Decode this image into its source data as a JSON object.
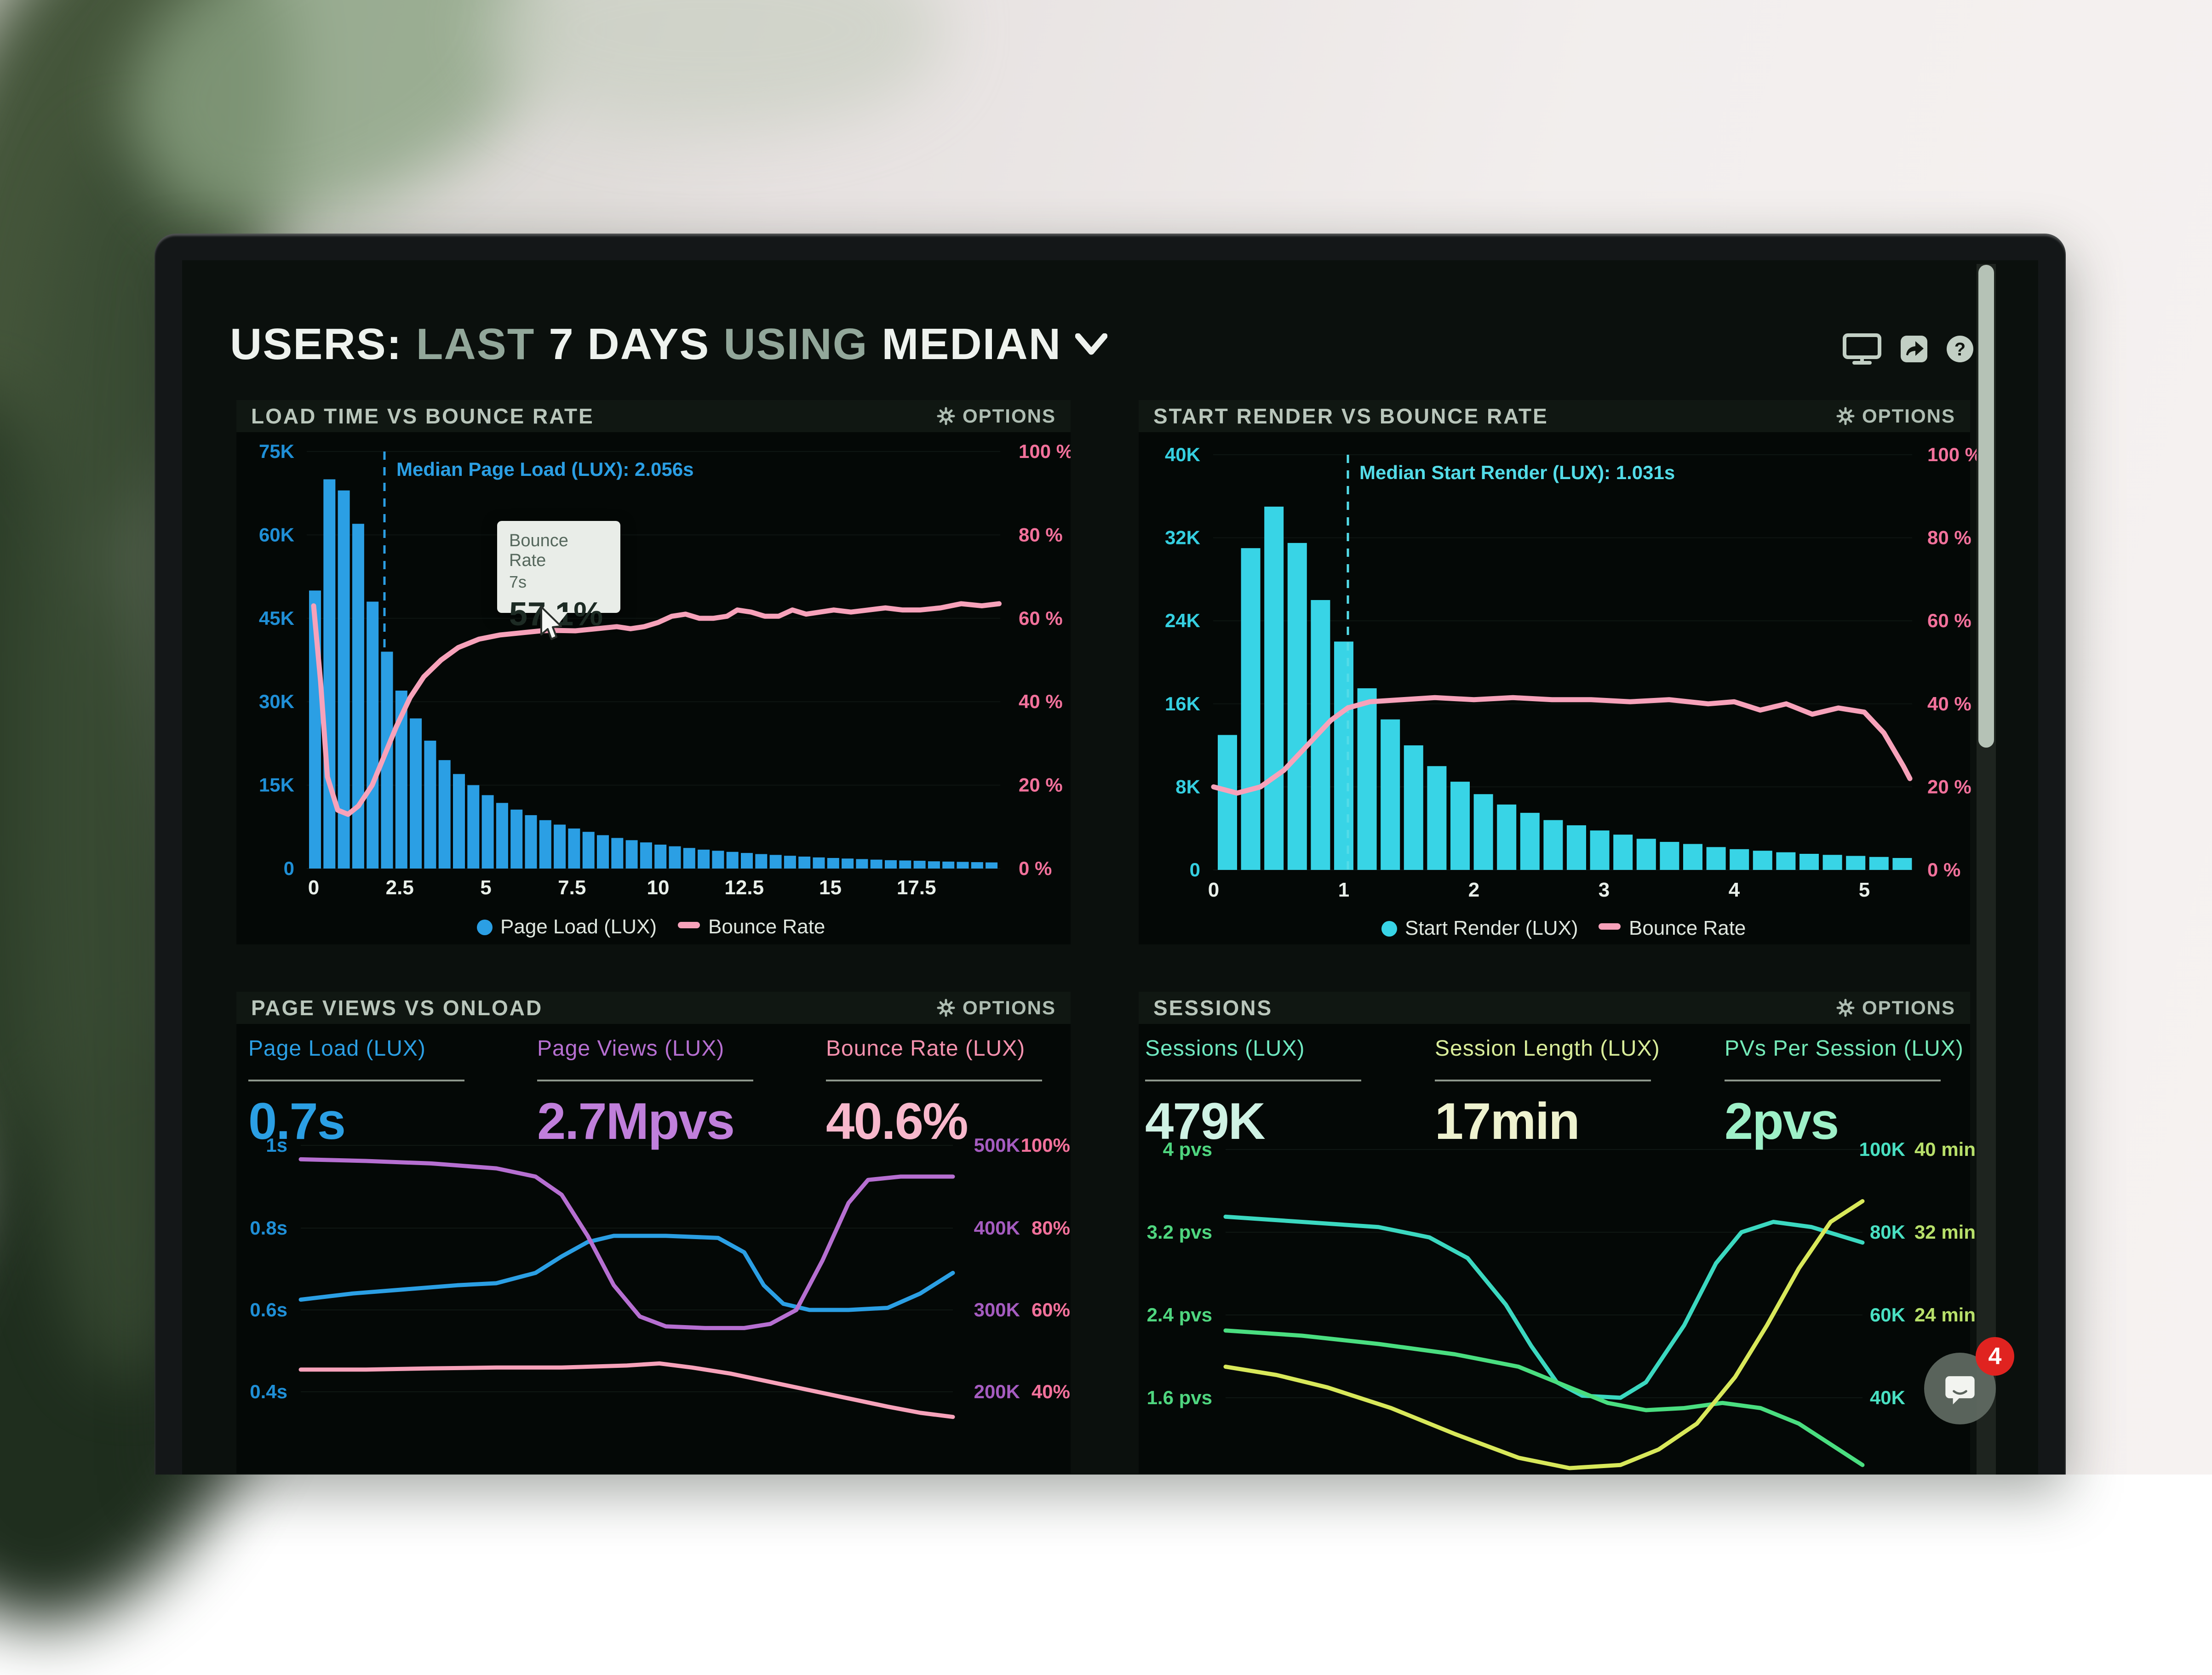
{
  "header": {
    "title_segments": [
      {
        "text": "USERS:",
        "style": "bright"
      },
      {
        "text": "LAST",
        "style": "muted"
      },
      {
        "text": "7 DAYS",
        "style": "bright"
      },
      {
        "text": "USING",
        "style": "muted"
      },
      {
        "text": "MEDIAN",
        "style": "bright"
      }
    ],
    "icons": [
      "display-icon",
      "share-icon",
      "help-circle-icon"
    ]
  },
  "colors": {
    "blue": "#2b9fe4",
    "blue_label": "#1f8fd6",
    "cyan": "#38d4e6",
    "cyan_label": "#35cfe0",
    "pink": "#f7a2ba",
    "pink_label": "#f2719b",
    "purple": "#b66fd1",
    "purple_label": "#a55cc0",
    "teal": "#3bd8c0",
    "green": "#4ade80",
    "yellow": "#d8e85a",
    "mint_label": "#6fe8c0",
    "lime_label": "#b8e06a",
    "white": "#eef2ee",
    "muted": "#92a79a",
    "header_text": "#b9c6bb"
  },
  "panels": [
    {
      "title": "LOAD TIME VS BOUNCE RATE",
      "options": "OPTIONS"
    },
    {
      "title": "START RENDER VS BOUNCE RATE",
      "options": "OPTIONS"
    },
    {
      "title": "PAGE VIEWS VS ONLOAD",
      "options": "OPTIONS"
    },
    {
      "title": "SESSIONS",
      "options": "OPTIONS"
    }
  ],
  "tooltip": {
    "series": "Bounce Rate",
    "x_value": "7s",
    "value": "57.1%"
  },
  "chat_widget": {
    "badge_count": "4",
    "icon": "chat-bubble-icon"
  },
  "chart_data": [
    {
      "type": "bar",
      "title": "Load Time vs Bounce Rate",
      "annotation": "Median Page Load (LUX): 2.056s",
      "median_seconds": 2.056,
      "x_ticks": [
        "0",
        "2.5",
        "5",
        "7.5",
        "10",
        "12.5",
        "15",
        "17.5"
      ],
      "x_tick_values": [
        0,
        2.5,
        5,
        7.5,
        10,
        12.5,
        15,
        17.5
      ],
      "x_unit": "seconds",
      "y_left_labels": [
        "75K",
        "60K",
        "45K",
        "30K",
        "15K",
        "0"
      ],
      "y_left_max_k": 75,
      "y_right_labels": [
        "100 %",
        "80 %",
        "60 %",
        "40 %",
        "20 %",
        "0 %"
      ],
      "bar_bin_seconds": 0.42,
      "bars_k": [
        50,
        70,
        68,
        62,
        48,
        39,
        32,
        27,
        23,
        19.5,
        17,
        15,
        13.2,
        11.8,
        10.6,
        9.6,
        8.7,
        7.9,
        7.2,
        6.6,
        6.0,
        5.5,
        5.1,
        4.7,
        4.3,
        4.0,
        3.7,
        3.4,
        3.2,
        3.0,
        2.8,
        2.6,
        2.45,
        2.3,
        2.15,
        2.0,
        1.9,
        1.8,
        1.7,
        1.6,
        1.5,
        1.45,
        1.4,
        1.3,
        1.25,
        1.2,
        1.15,
        1.1
      ],
      "line_points": [
        [
          0,
          63
        ],
        [
          0.2,
          45
        ],
        [
          0.4,
          22
        ],
        [
          0.7,
          14
        ],
        [
          1.0,
          13
        ],
        [
          1.3,
          15
        ],
        [
          1.7,
          20
        ],
        [
          2.0,
          26
        ],
        [
          2.4,
          34
        ],
        [
          2.8,
          41
        ],
        [
          3.2,
          46
        ],
        [
          3.7,
          50
        ],
        [
          4.2,
          53
        ],
        [
          4.8,
          55
        ],
        [
          5.4,
          56
        ],
        [
          6.0,
          56.5
        ],
        [
          6.6,
          57
        ],
        [
          7.0,
          57.1
        ],
        [
          7.6,
          57
        ],
        [
          8.2,
          57.5
        ],
        [
          8.8,
          58
        ],
        [
          9.2,
          57.5
        ],
        [
          9.6,
          58
        ],
        [
          10.0,
          59
        ],
        [
          10.4,
          60.5
        ],
        [
          10.8,
          61
        ],
        [
          11.2,
          60
        ],
        [
          11.6,
          60
        ],
        [
          12.0,
          60.5
        ],
        [
          12.3,
          62
        ],
        [
          12.7,
          61.5
        ],
        [
          13.1,
          60.5
        ],
        [
          13.5,
          60.5
        ],
        [
          13.9,
          62
        ],
        [
          14.3,
          61
        ],
        [
          14.7,
          61.5
        ],
        [
          15.1,
          62
        ],
        [
          15.6,
          61.5
        ],
        [
          16.1,
          62
        ],
        [
          16.6,
          62.5
        ],
        [
          17.1,
          62
        ],
        [
          17.6,
          62
        ],
        [
          18.2,
          62.5
        ],
        [
          18.8,
          63.5
        ],
        [
          19.4,
          63
        ],
        [
          19.9,
          63.5
        ]
      ],
      "legend": [
        {
          "label": "Page Load (LUX)",
          "swatch": "dot",
          "color": "blue"
        },
        {
          "label": "Bounce Rate",
          "swatch": "dash",
          "color": "pink"
        }
      ]
    },
    {
      "type": "bar",
      "title": "Start Render vs Bounce Rate",
      "annotation": "Median Start Render (LUX): 1.031s",
      "median_seconds": 1.031,
      "x_ticks": [
        "0",
        "1",
        "2",
        "3",
        "4",
        "5"
      ],
      "x_tick_values": [
        0,
        1,
        2,
        3,
        4,
        5
      ],
      "x_unit": "seconds",
      "y_left_labels": [
        "40K",
        "32K",
        "24K",
        "16K",
        "8K",
        "0"
      ],
      "y_left_max_k": 40,
      "y_right_labels": [
        "100 %",
        "80 %",
        "60 %",
        "40 %",
        "20 %",
        "0 %"
      ],
      "bar_bin_seconds": 0.178,
      "bars_k": [
        13,
        31,
        35,
        31.5,
        26,
        22,
        17.5,
        14.5,
        12,
        10,
        8.5,
        7.3,
        6.3,
        5.5,
        4.8,
        4.3,
        3.8,
        3.4,
        3.0,
        2.7,
        2.5,
        2.2,
        2.0,
        1.85,
        1.7,
        1.55,
        1.45,
        1.35,
        1.25,
        1.15
      ],
      "line_points": [
        [
          0,
          20
        ],
        [
          0.18,
          18.5
        ],
        [
          0.36,
          20
        ],
        [
          0.54,
          24
        ],
        [
          0.72,
          30
        ],
        [
          0.9,
          36
        ],
        [
          1.03,
          39
        ],
        [
          1.2,
          40.5
        ],
        [
          1.45,
          41
        ],
        [
          1.7,
          41.5
        ],
        [
          2.0,
          41
        ],
        [
          2.3,
          41.5
        ],
        [
          2.6,
          41
        ],
        [
          2.9,
          41
        ],
        [
          3.2,
          40.5
        ],
        [
          3.5,
          41
        ],
        [
          3.8,
          40
        ],
        [
          4.0,
          40.5
        ],
        [
          4.2,
          38.5
        ],
        [
          4.4,
          40
        ],
        [
          4.6,
          37.5
        ],
        [
          4.8,
          39
        ],
        [
          5.0,
          38
        ],
        [
          5.15,
          33
        ],
        [
          5.3,
          25
        ],
        [
          5.35,
          22
        ]
      ],
      "legend": [
        {
          "label": "Start Render (LUX)",
          "swatch": "dot",
          "color": "cyan"
        },
        {
          "label": "Bounce Rate",
          "swatch": "dash",
          "color": "pink"
        }
      ]
    },
    {
      "type": "line",
      "title": "Page Views vs Onload",
      "metrics": [
        {
          "label": "Page Load (LUX)",
          "value": "0.7s",
          "color": "blue"
        },
        {
          "label": "Page Views (LUX)",
          "value": "2.7Mpvs",
          "color": "purple"
        },
        {
          "label": "Bounce Rate (LUX)",
          "value": "40.6%",
          "color": "pink"
        }
      ],
      "y_left_labels": [
        "1s",
        "0.8s",
        "0.6s",
        "0.4s"
      ],
      "y_right_cols": [
        [
          "500K",
          "400K",
          "300K",
          "200K"
        ],
        [
          "100%",
          "80%",
          "60%",
          "40%"
        ]
      ],
      "series": [
        {
          "name": "Page Load",
          "color": "blue",
          "unit": "s",
          "points": [
            [
              0,
              0.625
            ],
            [
              0.08,
              0.64
            ],
            [
              0.16,
              0.65
            ],
            [
              0.24,
              0.66
            ],
            [
              0.3,
              0.665
            ],
            [
              0.36,
              0.69
            ],
            [
              0.4,
              0.73
            ],
            [
              0.44,
              0.765
            ],
            [
              0.48,
              0.78
            ],
            [
              0.56,
              0.78
            ],
            [
              0.64,
              0.775
            ],
            [
              0.68,
              0.74
            ],
            [
              0.71,
              0.66
            ],
            [
              0.74,
              0.615
            ],
            [
              0.78,
              0.6
            ],
            [
              0.84,
              0.6
            ],
            [
              0.9,
              0.605
            ],
            [
              0.95,
              0.64
            ],
            [
              1,
              0.69
            ]
          ]
        },
        {
          "name": "Page Views",
          "color": "purple",
          "unit": "K",
          "points": [
            [
              0,
              483
            ],
            [
              0.1,
              481
            ],
            [
              0.2,
              478
            ],
            [
              0.3,
              472
            ],
            [
              0.36,
              462
            ],
            [
              0.4,
              440
            ],
            [
              0.44,
              390
            ],
            [
              0.48,
              330
            ],
            [
              0.52,
              292
            ],
            [
              0.56,
              280
            ],
            [
              0.62,
              278
            ],
            [
              0.68,
              278
            ],
            [
              0.72,
              283
            ],
            [
              0.76,
              300
            ],
            [
              0.8,
              360
            ],
            [
              0.84,
              430
            ],
            [
              0.87,
              458
            ],
            [
              0.92,
              462
            ],
            [
              1,
              462
            ]
          ]
        },
        {
          "name": "Bounce Rate",
          "color": "pink",
          "unit": "pct",
          "points": [
            [
              0,
              45.5
            ],
            [
              0.1,
              45.5
            ],
            [
              0.2,
              45.8
            ],
            [
              0.3,
              46
            ],
            [
              0.4,
              46
            ],
            [
              0.5,
              46.5
            ],
            [
              0.55,
              47
            ],
            [
              0.6,
              46
            ],
            [
              0.66,
              44.5
            ],
            [
              0.72,
              42.5
            ],
            [
              0.78,
              40.5
            ],
            [
              0.84,
              38.5
            ],
            [
              0.9,
              36.5
            ],
            [
              0.95,
              35
            ],
            [
              1,
              34
            ]
          ]
        }
      ]
    },
    {
      "type": "line",
      "title": "Sessions",
      "metrics": [
        {
          "label": "Sessions (LUX)",
          "value": "479K",
          "color": "mint"
        },
        {
          "label": "Session Length (LUX)",
          "value": "17min",
          "color": "lime"
        },
        {
          "label": "PVs Per Session (LUX)",
          "value": "2pvs",
          "color": "green"
        }
      ],
      "y_left_labels": [
        "4 pvs",
        "3.2 pvs",
        "2.4 pvs",
        "1.6 pvs"
      ],
      "y_right_cols": [
        [
          "100K",
          "80K",
          "60K",
          "40K"
        ],
        [
          "40 min",
          "32 min",
          "24 min",
          ""
        ]
      ],
      "series": [
        {
          "name": "Sessions",
          "color": "teal",
          "unit": "pvs",
          "points": [
            [
              0,
              3.35
            ],
            [
              0.12,
              3.3
            ],
            [
              0.24,
              3.25
            ],
            [
              0.32,
              3.15
            ],
            [
              0.38,
              2.95
            ],
            [
              0.44,
              2.5
            ],
            [
              0.48,
              2.1
            ],
            [
              0.52,
              1.75
            ],
            [
              0.56,
              1.62
            ],
            [
              0.62,
              1.6
            ],
            [
              0.66,
              1.75
            ],
            [
              0.72,
              2.3
            ],
            [
              0.77,
              2.9
            ],
            [
              0.81,
              3.2
            ],
            [
              0.86,
              3.3
            ],
            [
              0.92,
              3.25
            ],
            [
              1,
              3.1
            ]
          ]
        },
        {
          "name": "PVs Per Session",
          "color": "green",
          "unit": "pvs",
          "points": [
            [
              0,
              2.25
            ],
            [
              0.12,
              2.2
            ],
            [
              0.24,
              2.12
            ],
            [
              0.36,
              2.02
            ],
            [
              0.46,
              1.9
            ],
            [
              0.54,
              1.7
            ],
            [
              0.6,
              1.55
            ],
            [
              0.66,
              1.48
            ],
            [
              0.72,
              1.5
            ],
            [
              0.78,
              1.55
            ],
            [
              0.84,
              1.5
            ],
            [
              0.9,
              1.35
            ],
            [
              0.95,
              1.15
            ],
            [
              1,
              0.95
            ]
          ]
        },
        {
          "name": "Session Length",
          "color": "yellow",
          "unit": "pvs",
          "points": [
            [
              0,
              1.9
            ],
            [
              0.08,
              1.82
            ],
            [
              0.16,
              1.7
            ],
            [
              0.26,
              1.5
            ],
            [
              0.36,
              1.25
            ],
            [
              0.46,
              1.02
            ],
            [
              0.54,
              0.92
            ],
            [
              0.62,
              0.95
            ],
            [
              0.68,
              1.1
            ],
            [
              0.74,
              1.35
            ],
            [
              0.8,
              1.8
            ],
            [
              0.85,
              2.3
            ],
            [
              0.9,
              2.85
            ],
            [
              0.95,
              3.3
            ],
            [
              1,
              3.5
            ]
          ]
        }
      ]
    }
  ]
}
